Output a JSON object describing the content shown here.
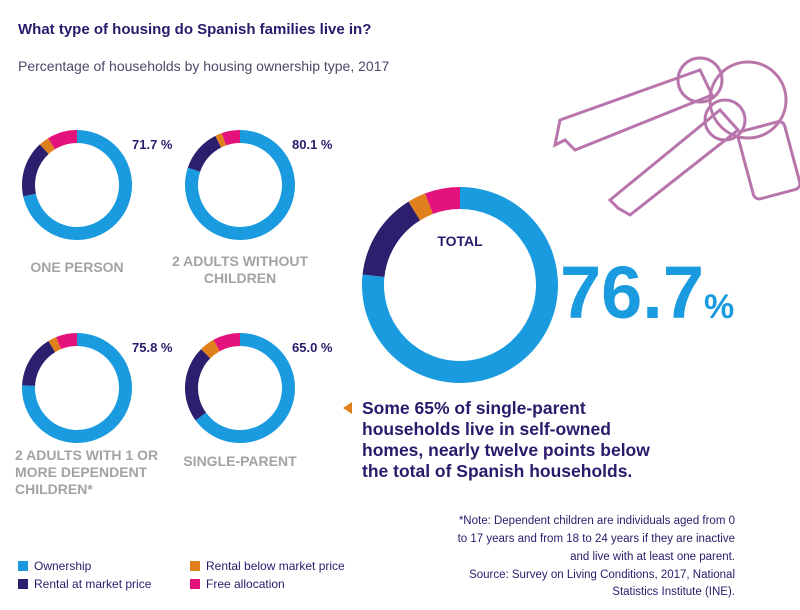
{
  "title": "What type of housing do Spanish families live in?",
  "subtitle": "Percentage of households by housing ownership type, 2017",
  "legend": [
    {
      "name": "Ownership",
      "color": "#1a9be0"
    },
    {
      "name": "Rental at market price",
      "color": "#2b1f6e"
    },
    {
      "name": "Rental below market price",
      "color": "#e0801c"
    },
    {
      "name": "Free allocation",
      "color": "#e4137b"
    }
  ],
  "chart_data": [
    {
      "type": "donut",
      "label": [
        "ONE PERSON"
      ],
      "values": [
        71.7,
        16.5,
        3.0,
        8.8
      ],
      "value_labels": [
        "71.7 %",
        null,
        null,
        null
      ]
    },
    {
      "type": "donut",
      "label": [
        "2 ADULTS WITHOUT",
        "CHILDREN"
      ],
      "values": [
        80.1,
        12.5,
        2.0,
        5.4
      ],
      "value_labels": [
        "80.1 %",
        null,
        null,
        null
      ]
    },
    {
      "type": "donut",
      "label": [
        "2 ADULTS WITH 1 OR",
        "MORE DEPENDENT",
        "CHILDREN*"
      ],
      "values": [
        75.8,
        15.5,
        2.5,
        6.2
      ],
      "value_labels": [
        "75.8 %",
        null,
        null,
        null
      ]
    },
    {
      "type": "donut",
      "label": [
        "SINGLE-PARENT"
      ],
      "values": [
        65.0,
        22.5,
        4.5,
        8.0
      ],
      "value_labels": [
        "65.0 %",
        null,
        null,
        null
      ]
    },
    {
      "type": "donut",
      "label": [
        "TOTAL"
      ],
      "values": [
        76.7,
        14.5,
        3.0,
        5.8
      ],
      "value_labels": [
        "76.7%",
        null,
        null,
        null
      ]
    }
  ],
  "callout": [
    "Some 65% of single-parent",
    "households live in self-owned",
    "homes, nearly twelve points below",
    "the total of Spanish households."
  ],
  "note": [
    "*Note: Dependent children are individuals aged from 0",
    "to 17 years and from 18 to 24 years if they are inactive",
    "and live with at least one parent."
  ],
  "source": [
    "Source: Survey on Living Conditions, 2017, National",
    "Statistics Institute (INE)."
  ]
}
